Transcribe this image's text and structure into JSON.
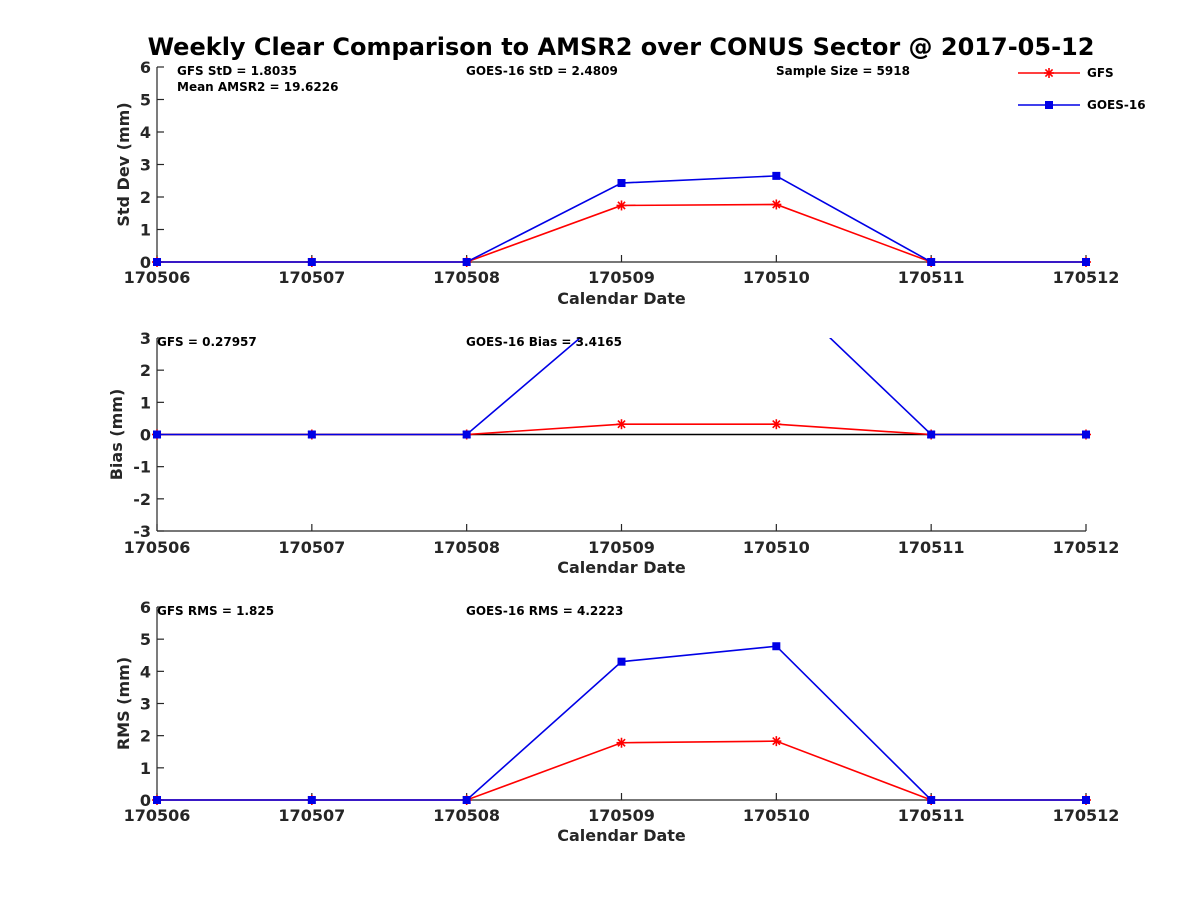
{
  "title": "Weekly Clear Comparison to AMSR2 over CONUS Sector @ 2017-05-12",
  "legend": {
    "placement": "top-right, outside plot area",
    "entries": [
      {
        "name": "GFS",
        "color": "#ff0000",
        "marker": "asterisk"
      },
      {
        "name": "GOES-16",
        "color": "#0000e6",
        "marker": "square"
      }
    ]
  },
  "chart_data": [
    {
      "type": "line",
      "xlabel": "Calendar Date",
      "ylabel": "Std Dev (mm)",
      "ylim": [
        0,
        6
      ],
      "yticks": [
        "0",
        "1",
        "2",
        "3",
        "4",
        "5",
        "6"
      ],
      "x": [
        "170506",
        "170507",
        "170508",
        "170509",
        "170510",
        "170511",
        "170512"
      ],
      "annotations": {
        "gfs": "GFS StD = 1.8035",
        "mean": "Mean AMSR2 = 19.6226",
        "goes": "GOES-16 StD = 2.4809",
        "sample": "Sample Size = 5918"
      },
      "series": [
        {
          "name": "GFS",
          "color": "#ff0000",
          "marker": "asterisk",
          "values": [
            0,
            0,
            0,
            1.74,
            1.77,
            0,
            0
          ]
        },
        {
          "name": "GOES-16",
          "color": "#0000e6",
          "marker": "square",
          "values": [
            0,
            0,
            0,
            2.43,
            2.65,
            0,
            0
          ]
        }
      ]
    },
    {
      "type": "line",
      "xlabel": "Calendar Date",
      "ylabel": "Bias (mm)",
      "ylim": [
        -3,
        3
      ],
      "yticks": [
        "-3",
        "-2",
        "-1",
        "0",
        "1",
        "2",
        "3"
      ],
      "x": [
        "170506",
        "170507",
        "170508",
        "170509",
        "170510",
        "170511",
        "170512"
      ],
      "zero_line": true,
      "annotations": {
        "gfs": "GFS = 0.27957",
        "goes": "GOES-16 Bias  = 3.4165"
      },
      "series": [
        {
          "name": "GFS",
          "color": "#ff0000",
          "marker": "asterisk",
          "values": [
            0,
            0,
            0,
            0.32,
            0.32,
            0,
            0
          ]
        },
        {
          "name": "GOES-16",
          "color": "#0000e6",
          "marker": "square",
          "values": [
            0,
            0,
            0,
            4.1,
            4.6,
            0,
            0
          ]
        }
      ]
    },
    {
      "type": "line",
      "xlabel": "Calendar Date",
      "ylabel": "RMS (mm)",
      "ylim": [
        0,
        6
      ],
      "yticks": [
        "0",
        "1",
        "2",
        "3",
        "4",
        "5",
        "6"
      ],
      "x": [
        "170506",
        "170507",
        "170508",
        "170509",
        "170510",
        "170511",
        "170512"
      ],
      "annotations": {
        "gfs": "GFS RMS = 1.825",
        "goes": "GOES-16 RMS = 4.2223"
      },
      "series": [
        {
          "name": "GFS",
          "color": "#ff0000",
          "marker": "asterisk",
          "values": [
            0,
            0,
            0,
            1.78,
            1.83,
            0,
            0
          ]
        },
        {
          "name": "GOES-16",
          "color": "#0000e6",
          "marker": "square",
          "values": [
            0,
            0,
            0,
            4.3,
            4.78,
            0,
            0
          ]
        }
      ]
    }
  ]
}
